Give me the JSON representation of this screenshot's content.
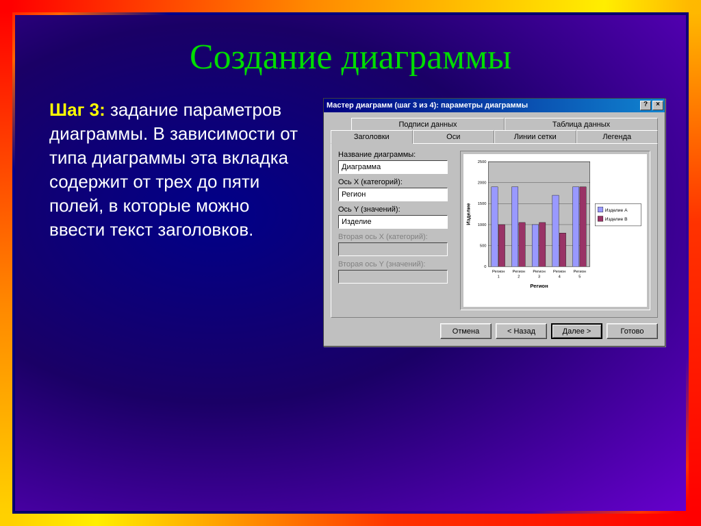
{
  "slide": {
    "title": "Создание диаграммы",
    "step_label": "Шаг 3:",
    "body_text": " задание параметров диаграммы. В зависимости от типа диаграммы эта вкладка содержит от трех до пяти полей, в которые можно ввести текст заголовков.",
    "title_color": "#00dd00",
    "step_color": "#ffff00",
    "text_color": "#ffffff"
  },
  "dialog": {
    "title": "Мастер диаграмм (шаг 3 из 4): параметры диаграммы",
    "help_btn": "?",
    "close_btn": "×",
    "tabs_back": [
      "Подписи данных",
      "Таблица данных"
    ],
    "tabs_front": [
      "Заголовки",
      "Оси",
      "Линии сетки",
      "Легенда"
    ],
    "active_tab": "Заголовки",
    "fields": [
      {
        "label": "Название диаграммы:",
        "value": "Диаграмма",
        "enabled": true
      },
      {
        "label": "Ось X (категорий):",
        "value": "Регион",
        "enabled": true
      },
      {
        "label": "Ось Y (значений):",
        "value": "Изделие",
        "enabled": true
      },
      {
        "label": "Вторая ось X (категорий):",
        "value": "",
        "enabled": false
      },
      {
        "label": "Вторая ось Y (значений):",
        "value": "",
        "enabled": false
      }
    ],
    "buttons": {
      "cancel": "Отмена",
      "back": "< Назад",
      "next": "Далее >",
      "finish": "Готово"
    }
  },
  "chart": {
    "type": "bar",
    "y_axis_title": "Изделие",
    "x_axis_title": "Регион",
    "categories": [
      "Регион 1",
      "Регион 2",
      "Регион 3",
      "Регион 4",
      "Регион 5"
    ],
    "series": [
      {
        "name": "Изделие A",
        "color": "#9999ff",
        "values": [
          1900,
          1900,
          1000,
          1700,
          1900
        ]
      },
      {
        "name": "Изделие B",
        "color": "#993366",
        "values": [
          1000,
          1050,
          1050,
          800,
          1900
        ]
      }
    ],
    "ylim": [
      0,
      2500
    ],
    "ytick_step": 500,
    "yticks": [
      0,
      500,
      1000,
      1500,
      2000,
      2500
    ],
    "background_color": "#ffffff",
    "plot_bg_color": "#c0c0c0",
    "grid_color": "#000000",
    "tick_font_size": 6,
    "axis_title_font_size": 8,
    "bar_group_width": 0.7
  }
}
